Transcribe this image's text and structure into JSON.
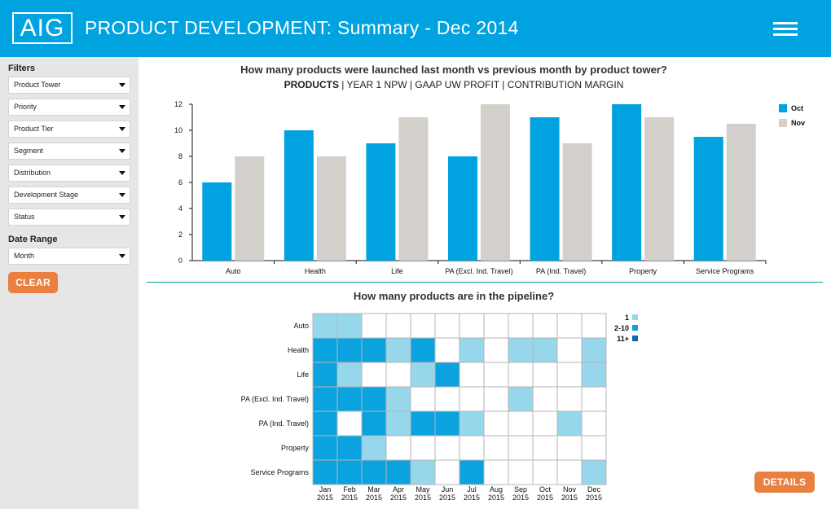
{
  "header": {
    "logo_text": "AIG",
    "title": "PRODUCT DEVELOPMENT: Summary - Dec 2014",
    "menu_icon": "hamburger-menu-icon",
    "background": "#00a2e0"
  },
  "sidebar": {
    "filters_heading": "Filters",
    "filters": [
      "Product Tower",
      "Priority",
      "Product Tier",
      "Segment",
      "Distribution",
      "Development Stage",
      "Status"
    ],
    "date_range_heading": "Date Range",
    "date_range_value": "Month",
    "clear_label": "CLEAR"
  },
  "details_label": "DETAILS",
  "bar_section": {
    "title": "How many products were launched last month vs previous month by product tower?",
    "subnav": [
      {
        "label": "PRODUCTS",
        "active": true
      },
      {
        "label": "YEAR 1 NPW",
        "active": false
      },
      {
        "label": "GAAP UW PROFIT",
        "active": false
      },
      {
        "label": "CONTRIBUTION MARGIN",
        "active": false
      }
    ]
  },
  "heat_section": {
    "title": "How many products are in the pipeline?"
  },
  "chart_data": [
    {
      "type": "bar",
      "categories": [
        "Auto",
        "Health",
        "Life",
        "PA (Excl. Ind. Travel)",
        "PA (Ind. Travel)",
        "Property",
        "Service Programs"
      ],
      "series": [
        {
          "name": "Oct",
          "color": "#00a2e0",
          "values": [
            6,
            10,
            9,
            8,
            11,
            12,
            9.5
          ]
        },
        {
          "name": "Nov",
          "color": "#d3d0cc",
          "values": [
            8,
            8,
            11,
            12,
            9,
            11,
            10.5
          ]
        }
      ],
      "ylim": [
        0,
        12
      ],
      "yticks": [
        0,
        2,
        4,
        6,
        8,
        10,
        12
      ],
      "legend": "top-right",
      "grid": false
    },
    {
      "type": "heatmap",
      "rows": [
        "Auto",
        "Health",
        "Life",
        "PA (Excl. Ind. Travel)",
        "PA (Ind. Travel)",
        "Property",
        "Service Programs"
      ],
      "columns": [
        {
          "month": "Jan",
          "year": "2015"
        },
        {
          "month": "Feb",
          "year": "2015"
        },
        {
          "month": "Mar",
          "year": "2015"
        },
        {
          "month": "Apr",
          "year": "2015"
        },
        {
          "month": "May",
          "year": "2015"
        },
        {
          "month": "Jun",
          "year": "2015"
        },
        {
          "month": "Jul",
          "year": "2015"
        },
        {
          "month": "Aug",
          "year": "2015"
        },
        {
          "month": "Sep",
          "year": "2015"
        },
        {
          "month": "Oct",
          "year": "2015"
        },
        {
          "month": "Nov",
          "year": "2015"
        },
        {
          "month": "Dec",
          "year": "2015"
        }
      ],
      "levels": [
        {
          "label": "1",
          "color": "#96d7ec"
        },
        {
          "label": "2-10",
          "color": "#0aa3df"
        },
        {
          "label": "11+",
          "color": "#0a6aa6"
        }
      ],
      "empty_color": "#ffffff",
      "cells": [
        [
          1,
          1,
          0,
          0,
          0,
          0,
          0,
          0,
          0,
          0,
          0,
          0
        ],
        [
          2,
          2,
          2,
          1,
          2,
          0,
          1,
          0,
          1,
          1,
          0,
          1
        ],
        [
          2,
          1,
          0,
          0,
          1,
          2,
          0,
          0,
          0,
          0,
          0,
          1
        ],
        [
          2,
          2,
          2,
          1,
          0,
          0,
          0,
          0,
          1,
          0,
          0,
          0
        ],
        [
          2,
          0,
          2,
          1,
          2,
          2,
          1,
          0,
          0,
          0,
          1,
          0
        ],
        [
          2,
          2,
          1,
          0,
          0,
          0,
          0,
          0,
          0,
          0,
          0,
          0
        ],
        [
          2,
          2,
          2,
          2,
          1,
          0,
          2,
          0,
          0,
          0,
          0,
          1
        ]
      ]
    }
  ]
}
